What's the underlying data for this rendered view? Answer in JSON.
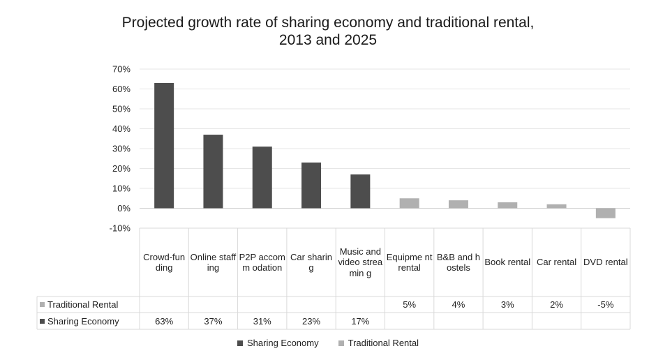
{
  "chart_data": {
    "type": "bar",
    "title_lines": [
      "Projected growth rate of sharing economy and traditional rental,",
      "2013 and 2025"
    ],
    "categories": [
      "Crowd-funding",
      "Online staffing",
      "P2P accomm odation",
      "Car sharing",
      "Music and video streamin g",
      "Equipme nt rental",
      "B&B and hostels",
      "Book rental",
      "Car rental",
      "DVD rental"
    ],
    "series": [
      {
        "name": "Traditional Rental",
        "color": "#b0b0b0",
        "values": [
          null,
          null,
          null,
          null,
          null,
          5,
          4,
          3,
          2,
          -5
        ],
        "labels": [
          "",
          "",
          "",
          "",
          "",
          "5%",
          "4%",
          "3%",
          "2%",
          "-5%"
        ]
      },
      {
        "name": "Sharing Economy",
        "color": "#4d4d4d",
        "values": [
          63,
          37,
          31,
          23,
          17,
          null,
          null,
          null,
          null,
          null
        ],
        "labels": [
          "63%",
          "37%",
          "31%",
          "23%",
          "17%",
          "",
          "",
          "",
          "",
          ""
        ]
      }
    ],
    "ylim": [
      -10,
      70
    ],
    "yticks": [
      -10,
      0,
      10,
      20,
      30,
      40,
      50,
      60,
      70
    ],
    "ytick_labels": [
      "-10%",
      "0%",
      "10%",
      "20%",
      "30%",
      "40%",
      "50%",
      "60%",
      "70%"
    ],
    "grid": true,
    "data_table": true,
    "legend_position": "bottom"
  }
}
